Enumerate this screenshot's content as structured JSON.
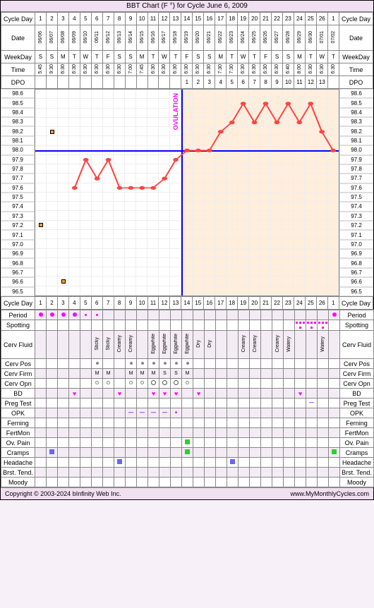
{
  "title": "BBT Chart (F °) for Cycle June 6, 2009",
  "labels": {
    "cycleDay": "Cycle Day",
    "date": "Date",
    "weekday": "WeekDay",
    "time": "Time",
    "dpo": "DPO",
    "period": "Period",
    "spotting": "Spotting",
    "cervFluid": "Cerv Fluid",
    "cervPos": "Cerv Pos",
    "cervFirm": "Cerv Firm",
    "cervOpn": "Cerv Opn",
    "bd": "BD",
    "pregTest": "Preg Test",
    "opk": "OPK",
    "ferning": "Ferning",
    "fertMon": "FertMon",
    "ovPain": "Ov. Pain",
    "cramps": "Cramps",
    "headache": "Headache",
    "brstTend": "Brst. Tend.",
    "moody": "Moody"
  },
  "footer": {
    "copyright": "Copyright © 2003-2024 bInfinity Web Inc.",
    "url": "www.MyMonthlyCycles.com"
  },
  "days": 27,
  "cycleDays": [
    "1",
    "2",
    "3",
    "4",
    "5",
    "6",
    "7",
    "8",
    "9",
    "10",
    "11",
    "12",
    "13",
    "14",
    "15",
    "16",
    "17",
    "18",
    "19",
    "20",
    "21",
    "22",
    "23",
    "24",
    "25",
    "26",
    "1"
  ],
  "dates": [
    "06/06",
    "06/07",
    "06/08",
    "06/09",
    "06/10",
    "06/11",
    "06/12",
    "06/13",
    "06/14",
    "06/15",
    "06/16",
    "06/17",
    "06/18",
    "06/19",
    "06/20",
    "06/21",
    "06/22",
    "06/23",
    "06/24",
    "06/25",
    "06/26",
    "06/27",
    "06/28",
    "06/29",
    "06/30",
    "07/01",
    "07/02"
  ],
  "weekdays": [
    "S",
    "S",
    "M",
    "T",
    "W",
    "T",
    "F",
    "S",
    "S",
    "M",
    "T",
    "W",
    "T",
    "F",
    "S",
    "S",
    "M",
    "T",
    "W",
    "T",
    "F",
    "S",
    "S",
    "M",
    "T",
    "W",
    "T"
  ],
  "times": [
    "5:45",
    "9:30",
    "6:30",
    "6:30",
    "6:30",
    "6:30",
    "6:30",
    "6:30",
    "7:00",
    "7:45",
    "6:30",
    "6:30",
    "6:30",
    "6:30",
    "6:30",
    "6:30",
    "7:30",
    "7:30",
    "6:30",
    "6:30",
    "6:30",
    "6:30",
    "6:40",
    "8:00",
    "6:30",
    "6:30",
    "6:30"
  ],
  "dpo": [
    "",
    "",
    "",
    "",
    "",
    "",
    "",
    "",
    "",
    "",
    "",
    "",
    "",
    "1",
    "2",
    "3",
    "4",
    "5",
    "6",
    "7",
    "8",
    "9",
    "10",
    "11",
    "12",
    "13",
    ""
  ],
  "yAxis": {
    "min": 96.5,
    "max": 98.6,
    "step": 0.1,
    "labels": [
      "98.6",
      "98.5",
      "98.4",
      "98.3",
      "98.2",
      "98.1",
      "98.0",
      "97.9",
      "97.8",
      "97.7",
      "97.6",
      "97.5",
      "97.4",
      "97.3",
      "97.2",
      "97.1",
      "97.0",
      "96.9",
      "96.8",
      "96.7",
      "96.6",
      "96.5"
    ]
  },
  "temps": [
    null,
    null,
    null,
    97.6,
    97.9,
    97.7,
    97.9,
    97.6,
    97.6,
    97.6,
    97.6,
    97.7,
    97.9,
    98.0,
    98.0,
    98.0,
    98.2,
    98.3,
    98.5,
    98.3,
    98.5,
    98.3,
    98.5,
    98.3,
    98.5,
    98.2,
    98.0
  ],
  "outliers": [
    {
      "day": 1,
      "temp": 97.2
    },
    {
      "day": 2,
      "temp": 98.2
    },
    {
      "day": 3,
      "temp": 96.6
    }
  ],
  "ovulationDay": 13,
  "coverline": 98.0,
  "ovLabel": "OVULATION",
  "colors": {
    "line": "#f44",
    "point": "#f44",
    "ovLine": "#00f",
    "coverLine": "#00f",
    "postOvBg": "rgba(255,210,160,0.35)",
    "period": "#f0f",
    "outlier": "#f93"
  },
  "period": [
    2,
    2,
    2,
    2,
    1,
    1,
    0,
    0,
    0,
    0,
    0,
    0,
    0,
    0,
    0,
    0,
    0,
    0,
    0,
    0,
    0,
    0,
    0,
    0,
    0,
    0,
    2
  ],
  "spotting": [
    0,
    0,
    0,
    0,
    0,
    0,
    0,
    0,
    0,
    0,
    0,
    0,
    0,
    0,
    0,
    0,
    0,
    0,
    0,
    0,
    0,
    0,
    0,
    1,
    1,
    1,
    0
  ],
  "cervFluid": [
    "",
    "",
    "",
    "",
    "",
    "Sticky",
    "Sticky",
    "Creamy",
    "Creamy",
    "",
    "Eggwhite",
    "Eggwhite",
    "Eggwhite",
    "Eggwhite",
    "Dry",
    "Dry",
    "",
    "",
    "Creamy",
    "Creamy",
    "",
    "Creamy",
    "Watery",
    "",
    "",
    "Watery",
    ""
  ],
  "cervPos": [
    "",
    "",
    "",
    "",
    "",
    "hl",
    "",
    "",
    "hl",
    "hl",
    "h",
    "h",
    "h",
    "hl",
    "",
    "",
    "",
    "",
    "",
    "",
    "",
    "",
    "",
    "",
    "",
    "",
    ""
  ],
  "cervFirm": [
    "",
    "",
    "",
    "",
    "",
    "M",
    "M",
    "",
    "M",
    "M",
    "M",
    "S",
    "S",
    "M",
    "",
    "",
    "",
    "",
    "",
    "",
    "",
    "",
    "",
    "",
    "",
    "",
    ""
  ],
  "cervOpn": [
    "",
    "",
    "",
    "",
    "",
    "o",
    "o",
    "",
    "o",
    "o",
    "O",
    "O",
    "O",
    "o",
    "",
    "",
    "",
    "",
    "",
    "",
    "",
    "",
    "",
    "",
    "",
    "",
    ""
  ],
  "bd": [
    "",
    "",
    "",
    "♥",
    "",
    "",
    "",
    "♥",
    "",
    "",
    "♥",
    "♥",
    "♥",
    "",
    "♥",
    "",
    "",
    "",
    "",
    "",
    "",
    "",
    "",
    "♥",
    "",
    "",
    ""
  ],
  "pregTest": [
    "",
    "",
    "",
    "",
    "",
    "",
    "",
    "",
    "",
    "",
    "",
    "",
    "",
    "",
    "",
    "",
    "",
    "",
    "",
    "",
    "",
    "",
    "",
    "",
    "-",
    "",
    ""
  ],
  "opk": [
    "",
    "",
    "",
    "",
    "",
    "",
    "",
    "",
    "-",
    "-",
    "-",
    "-",
    "+",
    "",
    "",
    "",
    "",
    "",
    "",
    "",
    "",
    "",
    "",
    "",
    "",
    "",
    ""
  ],
  "ovPain": [
    "",
    "",
    "",
    "",
    "",
    "",
    "",
    "",
    "",
    "",
    "",
    "",
    "",
    "g",
    "",
    "",
    "",
    "",
    "",
    "",
    "",
    "",
    "",
    "",
    "",
    "",
    ""
  ],
  "cramps": [
    "",
    "b",
    "",
    "",
    "",
    "",
    "",
    "",
    "",
    "",
    "",
    "",
    "",
    "g",
    "",
    "",
    "",
    "",
    "",
    "",
    "",
    "",
    "",
    "",
    "",
    "",
    "g"
  ],
  "headache": [
    "",
    "",
    "",
    "",
    "",
    "",
    "",
    "b",
    "",
    "",
    "",
    "",
    "",
    "",
    "",
    "",
    "",
    "b",
    "",
    "",
    "",
    "",
    "",
    "",
    "",
    "",
    ""
  ]
}
